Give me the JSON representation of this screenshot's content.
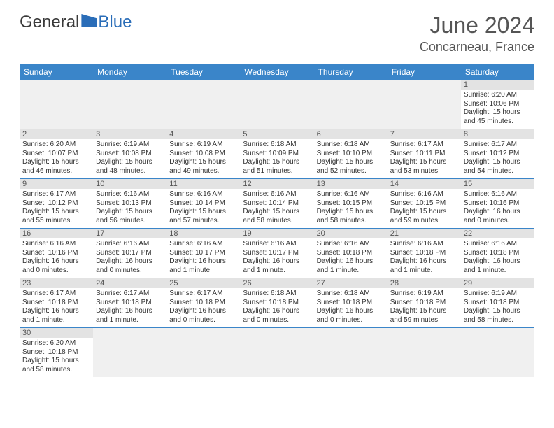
{
  "logo": {
    "part1": "General",
    "part2": "Blue"
  },
  "title": "June 2024",
  "location": "Concarneau, France",
  "dayHeaders": [
    "Sunday",
    "Monday",
    "Tuesday",
    "Wednesday",
    "Thursday",
    "Friday",
    "Saturday"
  ],
  "colors": {
    "headerBlue": "#3a85c9",
    "dayNumBar": "#e3e3e3",
    "blankBg": "#f0f0f0",
    "borderBlue": "#3a85c9"
  },
  "weeks": [
    [
      {
        "blank": true
      },
      {
        "blank": true
      },
      {
        "blank": true
      },
      {
        "blank": true
      },
      {
        "blank": true
      },
      {
        "blank": true
      },
      {
        "num": "1",
        "sunrise": "Sunrise: 6:20 AM",
        "sunset": "Sunset: 10:06 PM",
        "day1": "Daylight: 15 hours",
        "day2": "and 45 minutes."
      }
    ],
    [
      {
        "num": "2",
        "sunrise": "Sunrise: 6:20 AM",
        "sunset": "Sunset: 10:07 PM",
        "day1": "Daylight: 15 hours",
        "day2": "and 46 minutes."
      },
      {
        "num": "3",
        "sunrise": "Sunrise: 6:19 AM",
        "sunset": "Sunset: 10:08 PM",
        "day1": "Daylight: 15 hours",
        "day2": "and 48 minutes."
      },
      {
        "num": "4",
        "sunrise": "Sunrise: 6:19 AM",
        "sunset": "Sunset: 10:08 PM",
        "day1": "Daylight: 15 hours",
        "day2": "and 49 minutes."
      },
      {
        "num": "5",
        "sunrise": "Sunrise: 6:18 AM",
        "sunset": "Sunset: 10:09 PM",
        "day1": "Daylight: 15 hours",
        "day2": "and 51 minutes."
      },
      {
        "num": "6",
        "sunrise": "Sunrise: 6:18 AM",
        "sunset": "Sunset: 10:10 PM",
        "day1": "Daylight: 15 hours",
        "day2": "and 52 minutes."
      },
      {
        "num": "7",
        "sunrise": "Sunrise: 6:17 AM",
        "sunset": "Sunset: 10:11 PM",
        "day1": "Daylight: 15 hours",
        "day2": "and 53 minutes."
      },
      {
        "num": "8",
        "sunrise": "Sunrise: 6:17 AM",
        "sunset": "Sunset: 10:12 PM",
        "day1": "Daylight: 15 hours",
        "day2": "and 54 minutes."
      }
    ],
    [
      {
        "num": "9",
        "sunrise": "Sunrise: 6:17 AM",
        "sunset": "Sunset: 10:12 PM",
        "day1": "Daylight: 15 hours",
        "day2": "and 55 minutes."
      },
      {
        "num": "10",
        "sunrise": "Sunrise: 6:16 AM",
        "sunset": "Sunset: 10:13 PM",
        "day1": "Daylight: 15 hours",
        "day2": "and 56 minutes."
      },
      {
        "num": "11",
        "sunrise": "Sunrise: 6:16 AM",
        "sunset": "Sunset: 10:14 PM",
        "day1": "Daylight: 15 hours",
        "day2": "and 57 minutes."
      },
      {
        "num": "12",
        "sunrise": "Sunrise: 6:16 AM",
        "sunset": "Sunset: 10:14 PM",
        "day1": "Daylight: 15 hours",
        "day2": "and 58 minutes."
      },
      {
        "num": "13",
        "sunrise": "Sunrise: 6:16 AM",
        "sunset": "Sunset: 10:15 PM",
        "day1": "Daylight: 15 hours",
        "day2": "and 58 minutes."
      },
      {
        "num": "14",
        "sunrise": "Sunrise: 6:16 AM",
        "sunset": "Sunset: 10:15 PM",
        "day1": "Daylight: 15 hours",
        "day2": "and 59 minutes."
      },
      {
        "num": "15",
        "sunrise": "Sunrise: 6:16 AM",
        "sunset": "Sunset: 10:16 PM",
        "day1": "Daylight: 16 hours",
        "day2": "and 0 minutes."
      }
    ],
    [
      {
        "num": "16",
        "sunrise": "Sunrise: 6:16 AM",
        "sunset": "Sunset: 10:16 PM",
        "day1": "Daylight: 16 hours",
        "day2": "and 0 minutes."
      },
      {
        "num": "17",
        "sunrise": "Sunrise: 6:16 AM",
        "sunset": "Sunset: 10:17 PM",
        "day1": "Daylight: 16 hours",
        "day2": "and 0 minutes."
      },
      {
        "num": "18",
        "sunrise": "Sunrise: 6:16 AM",
        "sunset": "Sunset: 10:17 PM",
        "day1": "Daylight: 16 hours",
        "day2": "and 1 minute."
      },
      {
        "num": "19",
        "sunrise": "Sunrise: 6:16 AM",
        "sunset": "Sunset: 10:17 PM",
        "day1": "Daylight: 16 hours",
        "day2": "and 1 minute."
      },
      {
        "num": "20",
        "sunrise": "Sunrise: 6:16 AM",
        "sunset": "Sunset: 10:18 PM",
        "day1": "Daylight: 16 hours",
        "day2": "and 1 minute."
      },
      {
        "num": "21",
        "sunrise": "Sunrise: 6:16 AM",
        "sunset": "Sunset: 10:18 PM",
        "day1": "Daylight: 16 hours",
        "day2": "and 1 minute."
      },
      {
        "num": "22",
        "sunrise": "Sunrise: 6:16 AM",
        "sunset": "Sunset: 10:18 PM",
        "day1": "Daylight: 16 hours",
        "day2": "and 1 minute."
      }
    ],
    [
      {
        "num": "23",
        "sunrise": "Sunrise: 6:17 AM",
        "sunset": "Sunset: 10:18 PM",
        "day1": "Daylight: 16 hours",
        "day2": "and 1 minute."
      },
      {
        "num": "24",
        "sunrise": "Sunrise: 6:17 AM",
        "sunset": "Sunset: 10:18 PM",
        "day1": "Daylight: 16 hours",
        "day2": "and 1 minute."
      },
      {
        "num": "25",
        "sunrise": "Sunrise: 6:17 AM",
        "sunset": "Sunset: 10:18 PM",
        "day1": "Daylight: 16 hours",
        "day2": "and 0 minutes."
      },
      {
        "num": "26",
        "sunrise": "Sunrise: 6:18 AM",
        "sunset": "Sunset: 10:18 PM",
        "day1": "Daylight: 16 hours",
        "day2": "and 0 minutes."
      },
      {
        "num": "27",
        "sunrise": "Sunrise: 6:18 AM",
        "sunset": "Sunset: 10:18 PM",
        "day1": "Daylight: 16 hours",
        "day2": "and 0 minutes."
      },
      {
        "num": "28",
        "sunrise": "Sunrise: 6:19 AM",
        "sunset": "Sunset: 10:18 PM",
        "day1": "Daylight: 15 hours",
        "day2": "and 59 minutes."
      },
      {
        "num": "29",
        "sunrise": "Sunrise: 6:19 AM",
        "sunset": "Sunset: 10:18 PM",
        "day1": "Daylight: 15 hours",
        "day2": "and 58 minutes."
      }
    ],
    [
      {
        "num": "30",
        "sunrise": "Sunrise: 6:20 AM",
        "sunset": "Sunset: 10:18 PM",
        "day1": "Daylight: 15 hours",
        "day2": "and 58 minutes."
      },
      {
        "blank": true
      },
      {
        "blank": true
      },
      {
        "blank": true
      },
      {
        "blank": true
      },
      {
        "blank": true
      },
      {
        "blank": true
      }
    ]
  ]
}
